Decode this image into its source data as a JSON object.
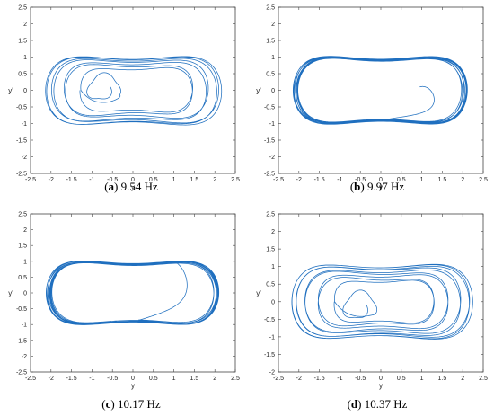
{
  "chart_data": [
    {
      "type": "line",
      "panel_label": "a",
      "caption": "9.54 Hz",
      "xlabel": "y",
      "ylabel": "y'",
      "xlim": [
        -2.5,
        2.5
      ],
      "ylim": [
        -2.5,
        2.5
      ],
      "xticks": [
        "-2.5",
        "-2",
        "-1.5",
        "-1",
        "-0.5",
        "0",
        "0.5",
        "1",
        "1.5",
        "2",
        "2.5"
      ],
      "yticks": [
        "2.5",
        "2",
        "1.5",
        "1",
        "0.5",
        "0",
        "-0.5",
        "-1",
        "-1.5",
        "-2",
        "-2.5"
      ],
      "grid": false,
      "series": [
        {
          "color": "#1f6fbf",
          "trajectory": {
            "start": [
              -1.1,
              0.3
            ],
            "spiral_start_scale": 0.55,
            "outer_scale_range": [
              0.62,
              1.05
            ],
            "outer_loops": 7,
            "end_scale": 0.92
          }
        }
      ]
    },
    {
      "type": "line",
      "panel_label": "b",
      "caption": "9.97 Hz",
      "xlabel": "y",
      "ylabel": "y'",
      "xlim": [
        -2.5,
        2.5
      ],
      "ylim": [
        -2.5,
        2.5
      ],
      "xticks": [
        "-2.5",
        "-2",
        "-1.5",
        "-1",
        "-0.5",
        "0",
        "0.5",
        "1",
        "1.5",
        "2",
        "2.5"
      ],
      "yticks": [
        "2.5",
        "2",
        "1.5",
        "1",
        "0.5",
        "0",
        "-0.5",
        "-1",
        "-1.5",
        "-2",
        "-2.5"
      ],
      "grid": false,
      "series": [
        {
          "color": "#1f6fbf",
          "trajectory": {
            "start": [
              0.95,
              0.1
            ],
            "outer_scale_range": [
              0.97,
              1.03
            ],
            "outer_loops": 12,
            "end_scale": 1.0
          }
        }
      ]
    },
    {
      "type": "line",
      "panel_label": "c",
      "caption": "10.17 Hz",
      "xlabel": "y",
      "ylabel": "y'",
      "xlim": [
        -2.5,
        2.5
      ],
      "ylim": [
        -2.5,
        2.5
      ],
      "xticks": [
        "-2.5",
        "-2",
        "-1.5",
        "-1",
        "-0.5",
        "0",
        "0.5",
        "1",
        "1.5",
        "2",
        "2.5"
      ],
      "yticks": [
        "2.5",
        "2",
        "1.5",
        "1",
        "0.5",
        "0",
        "-0.5",
        "-1",
        "-1.5",
        "-2",
        "-2.5"
      ],
      "grid": false,
      "series": [
        {
          "color": "#1f6fbf",
          "trajectory": {
            "start": [
              1.0,
              1.0
            ],
            "outer_scale_range": [
              0.96,
              1.02
            ],
            "outer_loops": 11,
            "end_scale": 1.0
          }
        }
      ]
    },
    {
      "type": "line",
      "panel_label": "d",
      "caption": "10.37 Hz",
      "xlabel": "y",
      "ylabel": "y'",
      "xlim": [
        -2.5,
        2.5
      ],
      "ylim": [
        -2,
        2.5
      ],
      "xticks": [
        "-2.5",
        "-2",
        "-1.5",
        "-1",
        "-0.5",
        "0",
        "0.5",
        "1",
        "1.5",
        "2",
        "2.5"
      ],
      "yticks": [
        "2.5",
        "2",
        "1.5",
        "1",
        "0.5",
        "0",
        "-0.5",
        "-1",
        "-1.5",
        "-2"
      ],
      "grid": false,
      "series": [
        {
          "color": "#1f6fbf",
          "trajectory": {
            "start": [
              -0.9,
              0.1
            ],
            "spiral_start_scale": 0.5,
            "outer_scale_range": [
              0.55,
              1.08
            ],
            "outer_loops": 9,
            "end_scale": 0.9
          }
        }
      ]
    }
  ]
}
